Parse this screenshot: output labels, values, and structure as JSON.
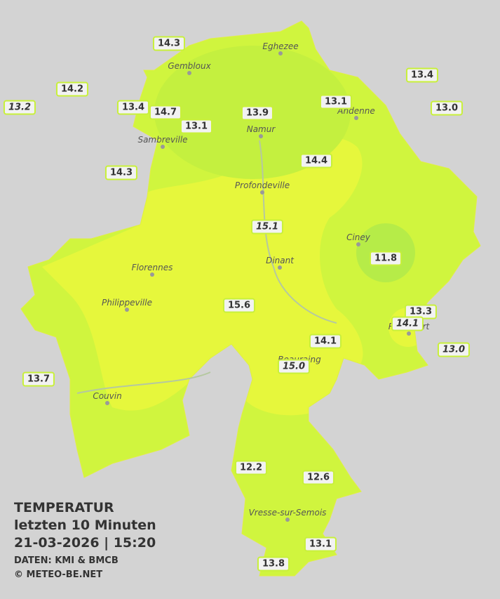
{
  "header": {
    "title": "TEMPERATUR",
    "subtitle": "letzten 10 Minuten",
    "timestamp": "21-03-2026  |  15:20",
    "source": "DATEN: KMI & BMCB",
    "credit": "© METEO-BE.NET"
  },
  "cities": [
    "Eghezee",
    "Gembloux",
    "Andenne",
    "Namur",
    "Sambreville",
    "Profondeville",
    "Ciney",
    "Florennes",
    "Dinant",
    "Philippeville",
    "Rochefort",
    "Beauraing",
    "Couvin",
    "Vresse-sur-Semois"
  ],
  "stations": [
    "14.3",
    "14.2",
    "13.2",
    "13.4",
    "14.7",
    "13.1",
    "13.9",
    "13.1",
    "13.4",
    "13.0",
    "14.3",
    "14.4",
    "15.1",
    "11.8",
    "15.6",
    "13.3",
    "14.1",
    "14.1",
    "13.0",
    "15.0",
    "13.7",
    "12.2",
    "12.6",
    "13.1",
    "13.8"
  ]
}
